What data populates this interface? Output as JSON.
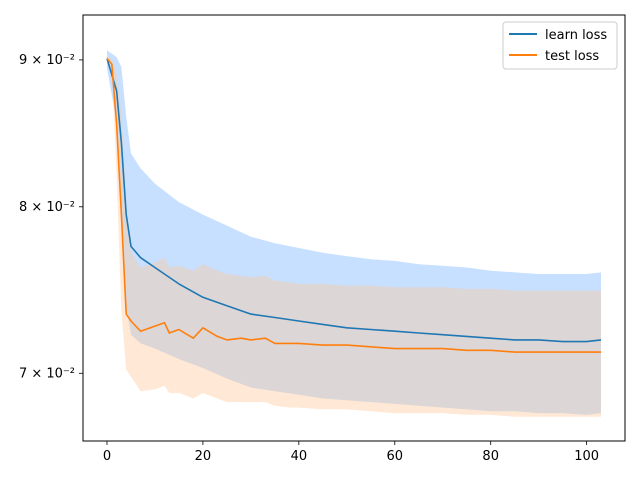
{
  "chart_data": {
    "type": "line",
    "title": "",
    "xlabel": "",
    "ylabel": "",
    "yscale": "log",
    "xlim": [
      -5,
      108
    ],
    "ylim": [
      0.0663,
      0.0933
    ],
    "x_ticks": [
      {
        "value": 0,
        "label": "0"
      },
      {
        "value": 20,
        "label": "20"
      },
      {
        "value": 40,
        "label": "40"
      },
      {
        "value": 60,
        "label": "60"
      },
      {
        "value": 80,
        "label": "80"
      },
      {
        "value": 100,
        "label": "100"
      }
    ],
    "y_ticks": [
      {
        "value": 0.07,
        "label": "7 × 10⁻²"
      },
      {
        "value": 0.08,
        "label": "8 × 10⁻²"
      },
      {
        "value": 0.09,
        "label": "9 × 10⁻²"
      }
    ],
    "legend": {
      "position": "top-right"
    },
    "grid": false,
    "series": [
      {
        "name": "learn loss",
        "color": "#1f77b4",
        "band_color": "#99c7ff",
        "points": [
          [
            0,
            0.0901,
            0.0907,
            0.0894
          ],
          [
            2,
            0.0878,
            0.0902,
            0.0856
          ],
          [
            3,
            0.0842,
            0.0895,
            0.0795
          ],
          [
            4,
            0.0795,
            0.086,
            0.0738
          ],
          [
            5,
            0.0775,
            0.0835,
            0.0722
          ],
          [
            7,
            0.0768,
            0.0825,
            0.0717
          ],
          [
            10,
            0.0762,
            0.0815,
            0.0714
          ],
          [
            15,
            0.0752,
            0.0803,
            0.0708
          ],
          [
            20,
            0.0744,
            0.0795,
            0.0703
          ],
          [
            25,
            0.0739,
            0.0788,
            0.0697
          ],
          [
            30,
            0.0734,
            0.0781,
            0.0692
          ],
          [
            35,
            0.0732,
            0.0777,
            0.069
          ],
          [
            40,
            0.073,
            0.0774,
            0.0688
          ],
          [
            45,
            0.0728,
            0.0771,
            0.0686
          ],
          [
            50,
            0.0726,
            0.0769,
            0.0685
          ],
          [
            55,
            0.0725,
            0.0767,
            0.0684
          ],
          [
            60,
            0.0724,
            0.0766,
            0.0683
          ],
          [
            65,
            0.0723,
            0.0764,
            0.0682
          ],
          [
            70,
            0.0722,
            0.0763,
            0.0681
          ],
          [
            75,
            0.0721,
            0.0762,
            0.068
          ],
          [
            80,
            0.072,
            0.076,
            0.0679
          ],
          [
            85,
            0.0719,
            0.0759,
            0.0679
          ],
          [
            90,
            0.0719,
            0.0758,
            0.0678
          ],
          [
            95,
            0.0718,
            0.0758,
            0.0678
          ],
          [
            100,
            0.0718,
            0.0758,
            0.0677
          ],
          [
            103,
            0.0719,
            0.0759,
            0.0678
          ]
        ]
      },
      {
        "name": "test loss",
        "color": "#ff7f0e",
        "band_color": "#ffc999",
        "points": [
          [
            0,
            0.0901,
            0.0903,
            0.0899
          ],
          [
            1,
            0.0897,
            0.0901,
            0.0893
          ],
          [
            2,
            0.0855,
            0.089,
            0.082
          ],
          [
            3,
            0.0795,
            0.0865,
            0.0735
          ],
          [
            4,
            0.0734,
            0.08,
            0.0702
          ],
          [
            5,
            0.073,
            0.0772,
            0.0698
          ],
          [
            7,
            0.0724,
            0.0762,
            0.069
          ],
          [
            10,
            0.0727,
            0.0765,
            0.0691
          ],
          [
            12,
            0.0729,
            0.0768,
            0.0693
          ],
          [
            13,
            0.0723,
            0.0762,
            0.0689
          ],
          [
            15,
            0.0725,
            0.0763,
            0.0689
          ],
          [
            18,
            0.072,
            0.076,
            0.0686
          ],
          [
            20,
            0.0726,
            0.0764,
            0.0689
          ],
          [
            23,
            0.0721,
            0.076,
            0.0686
          ],
          [
            25,
            0.0719,
            0.0758,
            0.0684
          ],
          [
            28,
            0.072,
            0.0757,
            0.0684
          ],
          [
            30,
            0.0719,
            0.0756,
            0.0684
          ],
          [
            33,
            0.072,
            0.0757,
            0.0684
          ],
          [
            35,
            0.0717,
            0.0754,
            0.0682
          ],
          [
            38,
            0.0717,
            0.0753,
            0.0681
          ],
          [
            40,
            0.0717,
            0.0752,
            0.0681
          ],
          [
            45,
            0.0716,
            0.0752,
            0.068
          ],
          [
            50,
            0.0716,
            0.0751,
            0.068
          ],
          [
            55,
            0.0715,
            0.0751,
            0.0679
          ],
          [
            60,
            0.0714,
            0.075,
            0.0678
          ],
          [
            65,
            0.0714,
            0.075,
            0.0678
          ],
          [
            70,
            0.0714,
            0.075,
            0.0678
          ],
          [
            75,
            0.0713,
            0.0749,
            0.0677
          ],
          [
            80,
            0.0713,
            0.0749,
            0.0677
          ],
          [
            85,
            0.0712,
            0.0748,
            0.0676
          ],
          [
            90,
            0.0712,
            0.0748,
            0.0676
          ],
          [
            95,
            0.0712,
            0.0748,
            0.0676
          ],
          [
            100,
            0.0712,
            0.0748,
            0.0676
          ],
          [
            103,
            0.0712,
            0.0748,
            0.0676
          ]
        ]
      }
    ]
  }
}
